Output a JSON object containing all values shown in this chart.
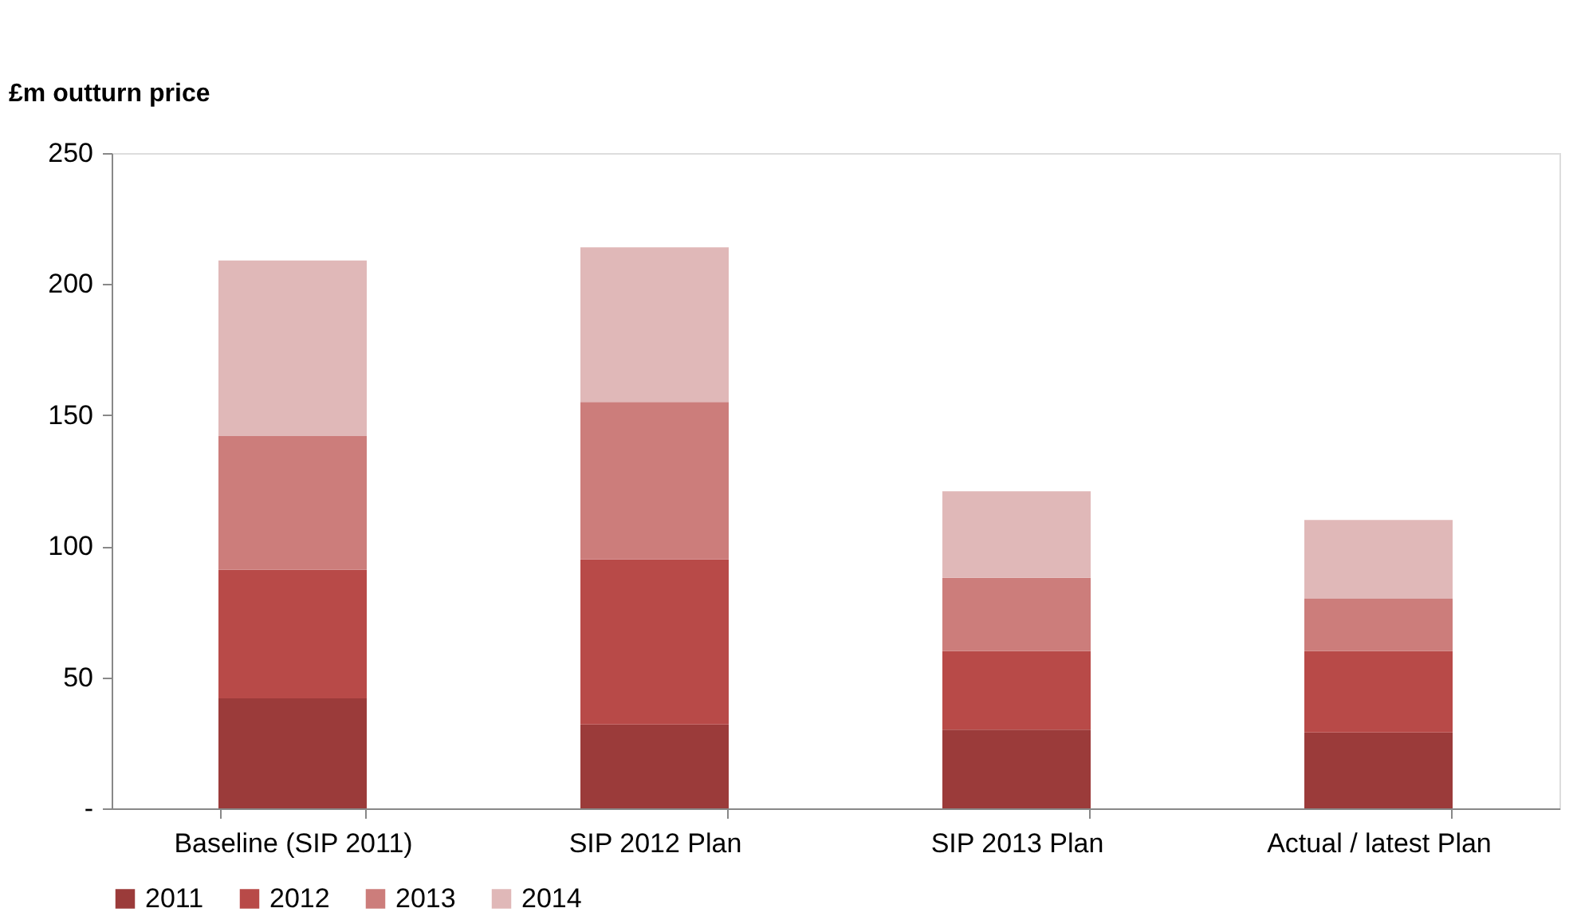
{
  "chart_data": {
    "type": "bar",
    "stacked": true,
    "ylabel": "£m outturn price",
    "categories": [
      "Baseline (SIP 2011)",
      "SIP 2012 Plan",
      "SIP 2013 Plan",
      "Actual / latest Plan"
    ],
    "series": [
      {
        "name": "2011",
        "color": "#9b3b3a",
        "values": [
          42,
          32,
          30,
          29
        ]
      },
      {
        "name": "2012",
        "color": "#b84a48",
        "values": [
          49,
          63,
          30,
          31
        ]
      },
      {
        "name": "2013",
        "color": "#cc7d7b",
        "values": [
          51,
          60,
          28,
          20
        ]
      },
      {
        "name": "2014",
        "color": "#e0b8b8",
        "values": [
          67,
          59,
          33,
          30
        ]
      }
    ],
    "ylim": [
      0,
      250
    ],
    "yticks": [
      {
        "value": 0,
        "label": "-"
      },
      50,
      100,
      150,
      200,
      250
    ],
    "grid": false,
    "legend": "bottom"
  }
}
